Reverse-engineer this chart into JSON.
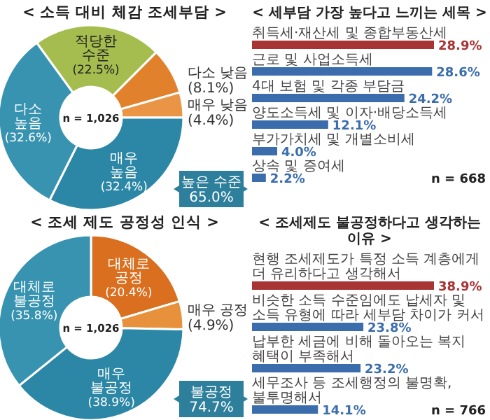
{
  "chart_data": [
    {
      "type": "donut",
      "title": "< 소득 대비 체감 조세부담 >",
      "categories": [
        "적당한 수준",
        "다소 낮음",
        "매우 낮음",
        "매우 높음",
        "다소 높음"
      ],
      "values": [
        22.5,
        8.1,
        4.4,
        32.4,
        32.6
      ],
      "value_labels": [
        "(22.5%)",
        "(8.1%)",
        "(4.4%)",
        "(32.4%)",
        "(32.6%)"
      ],
      "colors": [
        "#a5bd4f",
        "#e2812c",
        "#e99545",
        "#2b87a5",
        "#3893b0"
      ],
      "annotations": [
        "n = 1,026",
        "높은 수준 65.0%"
      ]
    },
    {
      "type": "bar",
      "orientation": "horizontal",
      "title": "< 세부담 가장 높다고 느끼는 세목 >",
      "categories": [
        "취득세·재산세 및 종합부동산세",
        "근로 및 사업소득세",
        "4대 보험 및 각종 부담금",
        "양도소득세 및 이자·배당소득세",
        "부가가치세 및 개별소비세",
        "상속 및 증여세"
      ],
      "values": [
        28.9,
        28.6,
        24.2,
        12.1,
        4.0,
        2.2
      ],
      "value_labels": [
        "28.9%",
        "28.6%",
        "24.2%",
        "12.1%",
        "4.0%",
        "2.2%"
      ],
      "colors": [
        "#a83434",
        "#3b6dad",
        "#3b6dad",
        "#3b6dad",
        "#3b6dad",
        "#3b6dad"
      ],
      "annotations": [
        "n = 668"
      ]
    },
    {
      "type": "donut",
      "title": "< 조세 제도 공정성 인식 >",
      "categories": [
        "대체로 공정",
        "매우 공정",
        "매우 불공정",
        "대체로 불공정"
      ],
      "values": [
        20.4,
        4.9,
        38.9,
        35.8
      ],
      "value_labels": [
        "(20.4%)",
        "(4.9%)",
        "(38.9%)",
        "(35.8%)"
      ],
      "colors": [
        "#d96f1f",
        "#e8913c",
        "#2b87a5",
        "#3893b0"
      ],
      "annotations": [
        "n = 1,026",
        "불공정 74.7%"
      ]
    },
    {
      "type": "bar",
      "orientation": "horizontal",
      "title": "< 조세제도 불공정하다고 생각하는 이유 >",
      "categories": [
        "현행 조세제도가 특정 소득 계층에게 더 유리하다고 생각해서",
        "비슷한 소득 수준임에도 납세자 및 소득 유형에 따라 세부담 차이가 커서",
        "납부한 세금에 비해 돌아오는 복지 혜택이 부족해서",
        "세무조사 등 조세행정의 불명확, 불투명해서"
      ],
      "values": [
        38.9,
        23.8,
        23.2,
        14.1
      ],
      "value_labels": [
        "38.9%",
        "23.8%",
        "23.2%",
        "14.1%"
      ],
      "colors": [
        "#a83434",
        "#3b6dad",
        "#3b6dad",
        "#3b6dad"
      ],
      "annotations": [
        "n = 766"
      ]
    }
  ]
}
